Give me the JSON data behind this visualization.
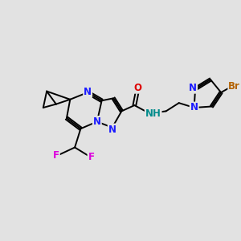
{
  "background_color": "#e2e2e2",
  "figsize": [
    3.0,
    3.0
  ],
  "dpi": 100,
  "atom_colors": {
    "C": "#000000",
    "N": "#1a1aff",
    "O": "#dd0000",
    "F": "#dd00dd",
    "Br": "#b36200",
    "NH": "#008b8b"
  },
  "bond_color": "#000000",
  "bond_width": 1.4,
  "font_size_atom": 8.5
}
